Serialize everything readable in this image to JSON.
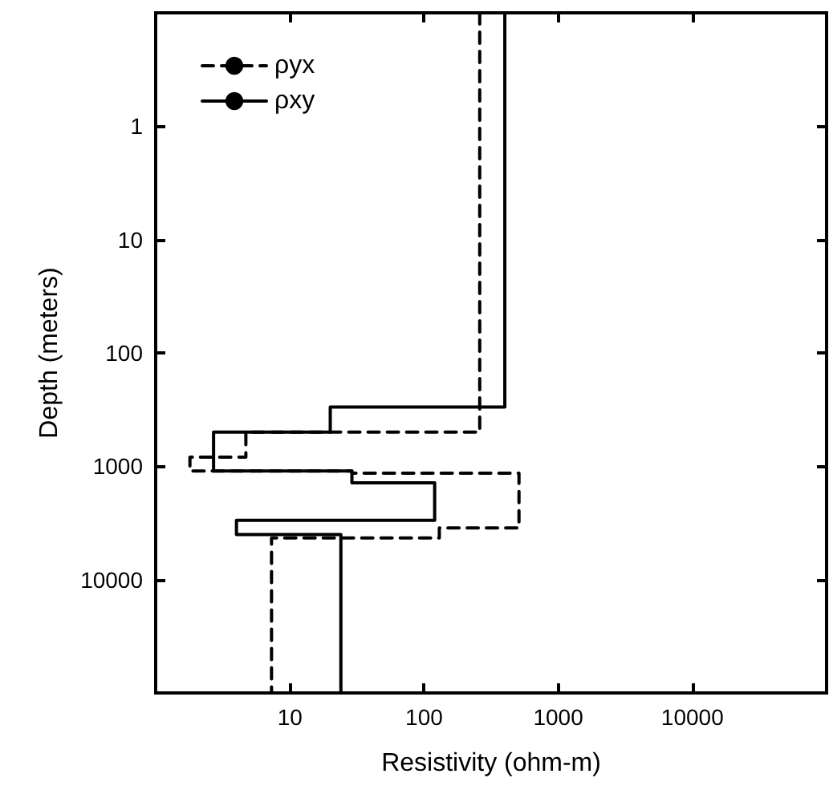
{
  "chart_data": {
    "type": "line",
    "xlabel": "Resistivity (ohm-m)",
    "ylabel": "Depth (meters)",
    "log": "xy",
    "xlim": [
      1,
      100000
    ],
    "xticks": [
      10,
      100,
      1000,
      10000
    ],
    "ylim": [
      100000,
      0.1
    ],
    "yticks": [
      1,
      10,
      100,
      1000,
      10000
    ],
    "grid": false,
    "legend": "top left",
    "marker": "none",
    "series": [
      {
        "name": "ρyx",
        "color": "#000000",
        "line_style": "dashed",
        "x": [
          260,
          260,
          4.7,
          4.7,
          1.8,
          1.8,
          29,
          29,
          510,
          510,
          130,
          130,
          7.3,
          7.3
        ],
        "values": [
          0.1,
          500,
          500,
          830,
          830,
          1100,
          1100,
          1150,
          1150,
          3500,
          3500,
          4300,
          4300,
          100000
        ]
      },
      {
        "name": "ρxy",
        "color": "#000000",
        "line_style": "solid",
        "x": [
          400,
          400,
          20,
          20,
          2.7,
          2.7,
          29,
          29,
          120,
          120,
          4,
          4,
          24,
          24
        ],
        "values": [
          0.1,
          300,
          300,
          500,
          500,
          1100,
          1100,
          1400,
          1400,
          3000,
          3000,
          4000,
          4000,
          100000
        ]
      }
    ]
  }
}
